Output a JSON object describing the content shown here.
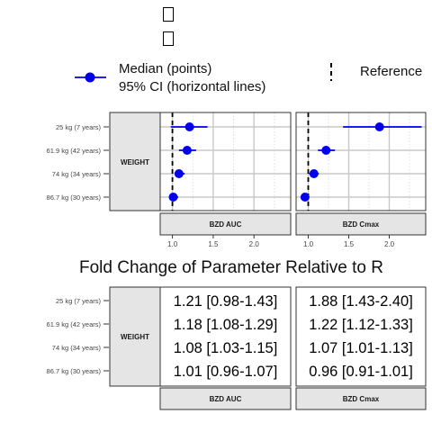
{
  "legend": {
    "median_label": "Median (points)",
    "ci_label": "95% CI (horizontal lines)",
    "reference_label": "Reference"
  },
  "xlabel": "Fold Change of Parameter Relative to R",
  "colors": {
    "point": "#0000ee",
    "ci": "#0000ee",
    "reference": "#000000",
    "strip": "#e5e5e5",
    "grid": "#c8c8c8"
  },
  "chart_data": {
    "type": "scatter",
    "covariate": "WEIGHT",
    "categories": [
      "86.7 kg (30 years)",
      "74 kg (34 years)",
      "61.9 kg (42 years)",
      "25 kg (7 years)"
    ],
    "xlim": [
      0.85,
      2.45
    ],
    "x_ticks": [
      1.0,
      1.5,
      2.0
    ],
    "reference_x": 1.0,
    "grid": true,
    "panels": [
      {
        "name": "BZD AUC",
        "median": [
          1.01,
          1.08,
          1.18,
          1.21
        ],
        "lower": [
          0.96,
          1.03,
          1.08,
          0.98
        ],
        "upper": [
          1.07,
          1.15,
          1.29,
          1.43
        ],
        "labels": [
          "1.01 [0.96-1.07]",
          "1.08 [1.03-1.15]",
          "1.18 [1.08-1.29]",
          "1.21 [0.98-1.43]"
        ]
      },
      {
        "name": "BZD Cmax",
        "median": [
          0.96,
          1.07,
          1.22,
          1.88
        ],
        "lower": [
          0.91,
          1.01,
          1.12,
          1.43
        ],
        "upper": [
          1.01,
          1.13,
          1.33,
          2.4
        ],
        "labels": [
          "0.96 [0.91-1.01]",
          "1.07 [1.01-1.13]",
          "1.22 [1.12-1.33]",
          "1.88 [1.43-2.40]"
        ]
      }
    ]
  }
}
